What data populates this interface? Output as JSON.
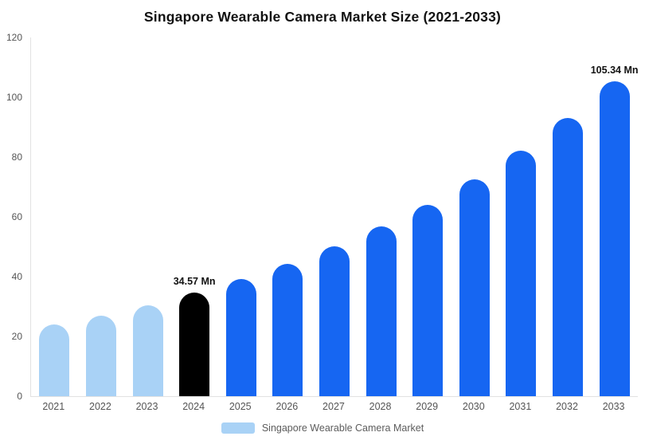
{
  "title": "Singapore Wearable Camera Market Size (2021-2033)",
  "chart_data": {
    "type": "bar",
    "title": "Singapore Wearable Camera Market Size (2021-2033)",
    "categories": [
      "2021",
      "2022",
      "2023",
      "2024",
      "2025",
      "2026",
      "2027",
      "2028",
      "2029",
      "2030",
      "2031",
      "2032",
      "2033"
    ],
    "values": [
      23.9,
      27.0,
      30.5,
      34.57,
      39.1,
      44.2,
      50.1,
      56.7,
      64.1,
      72.6,
      82.2,
      93.0,
      105.34
    ],
    "bar_colors": [
      "#a9d2f6",
      "#a9d2f6",
      "#a9d2f6",
      "#000000",
      "#1666f2",
      "#1666f2",
      "#1666f2",
      "#1666f2",
      "#1666f2",
      "#1666f2",
      "#1666f2",
      "#1666f2",
      "#1666f2"
    ],
    "ylim": [
      0,
      120
    ],
    "yticks": [
      0,
      20,
      40,
      60,
      80,
      100,
      120
    ],
    "grid": false,
    "xlabel": "",
    "ylabel": "",
    "annotations": [
      {
        "category": "2024",
        "text": "34.57 Mn"
      },
      {
        "category": "2033",
        "text": "105.34 Mn"
      }
    ],
    "legend": {
      "position": "bottom",
      "label": "Singapore Wearable Camera Market",
      "swatch_color": "#a9d2f6"
    },
    "colors": {
      "historical": "#a9d2f6",
      "current_year_highlight": "#000000",
      "forecast": "#1666f2"
    }
  }
}
